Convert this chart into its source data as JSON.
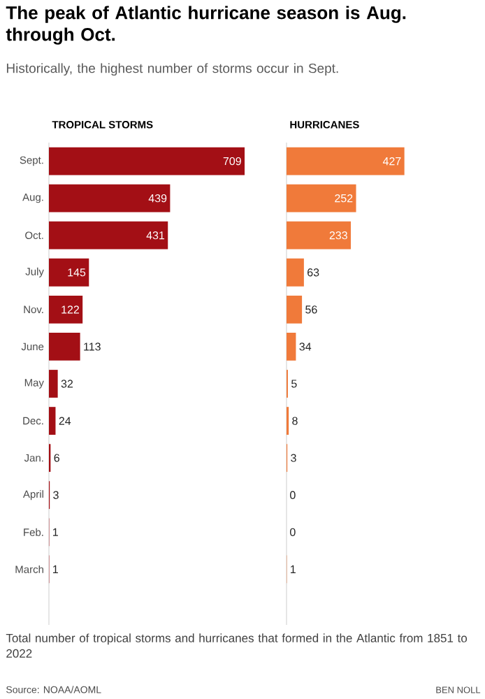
{
  "chart_data": [
    {
      "type": "other",
      "title": "The peak of Atlantic hurricane season is Aug. through Oct.",
      "subtitle": "Historically, the highest number of storms occur in Sept.",
      "annotations": [
        "Total number of tropical storms and hurricanes that formed in the Atlantic from 1851 to 2022",
        "Source: NOAA/AOML",
        "BEN NOLL"
      ]
    },
    {
      "type": "bar",
      "orientation": "horizontal",
      "title": "TROPICAL STORMS",
      "categories": [
        "Sept.",
        "Aug.",
        "Oct.",
        "July",
        "Nov.",
        "June",
        "May",
        "Dec.",
        "Jan.",
        "April",
        "Feb.",
        "March",
        null
      ],
      "values": [
        709,
        439,
        431,
        145,
        122,
        113,
        32,
        24,
        6,
        3,
        1,
        1,
        null
      ],
      "color": "#a30f15",
      "data_labels": true,
      "tick_labels": "y"
    },
    {
      "type": "bar",
      "orientation": "horizontal",
      "title": "HURRICANES",
      "categories": [
        null,
        null,
        null,
        null,
        null,
        null,
        null,
        null,
        null,
        null,
        null,
        null,
        null
      ],
      "values": [
        427,
        252,
        233,
        63,
        56,
        34,
        5,
        8,
        3,
        0,
        0,
        1,
        null
      ],
      "color": "#f07a3a",
      "data_labels": true,
      "tick_labels": false
    }
  ]
}
